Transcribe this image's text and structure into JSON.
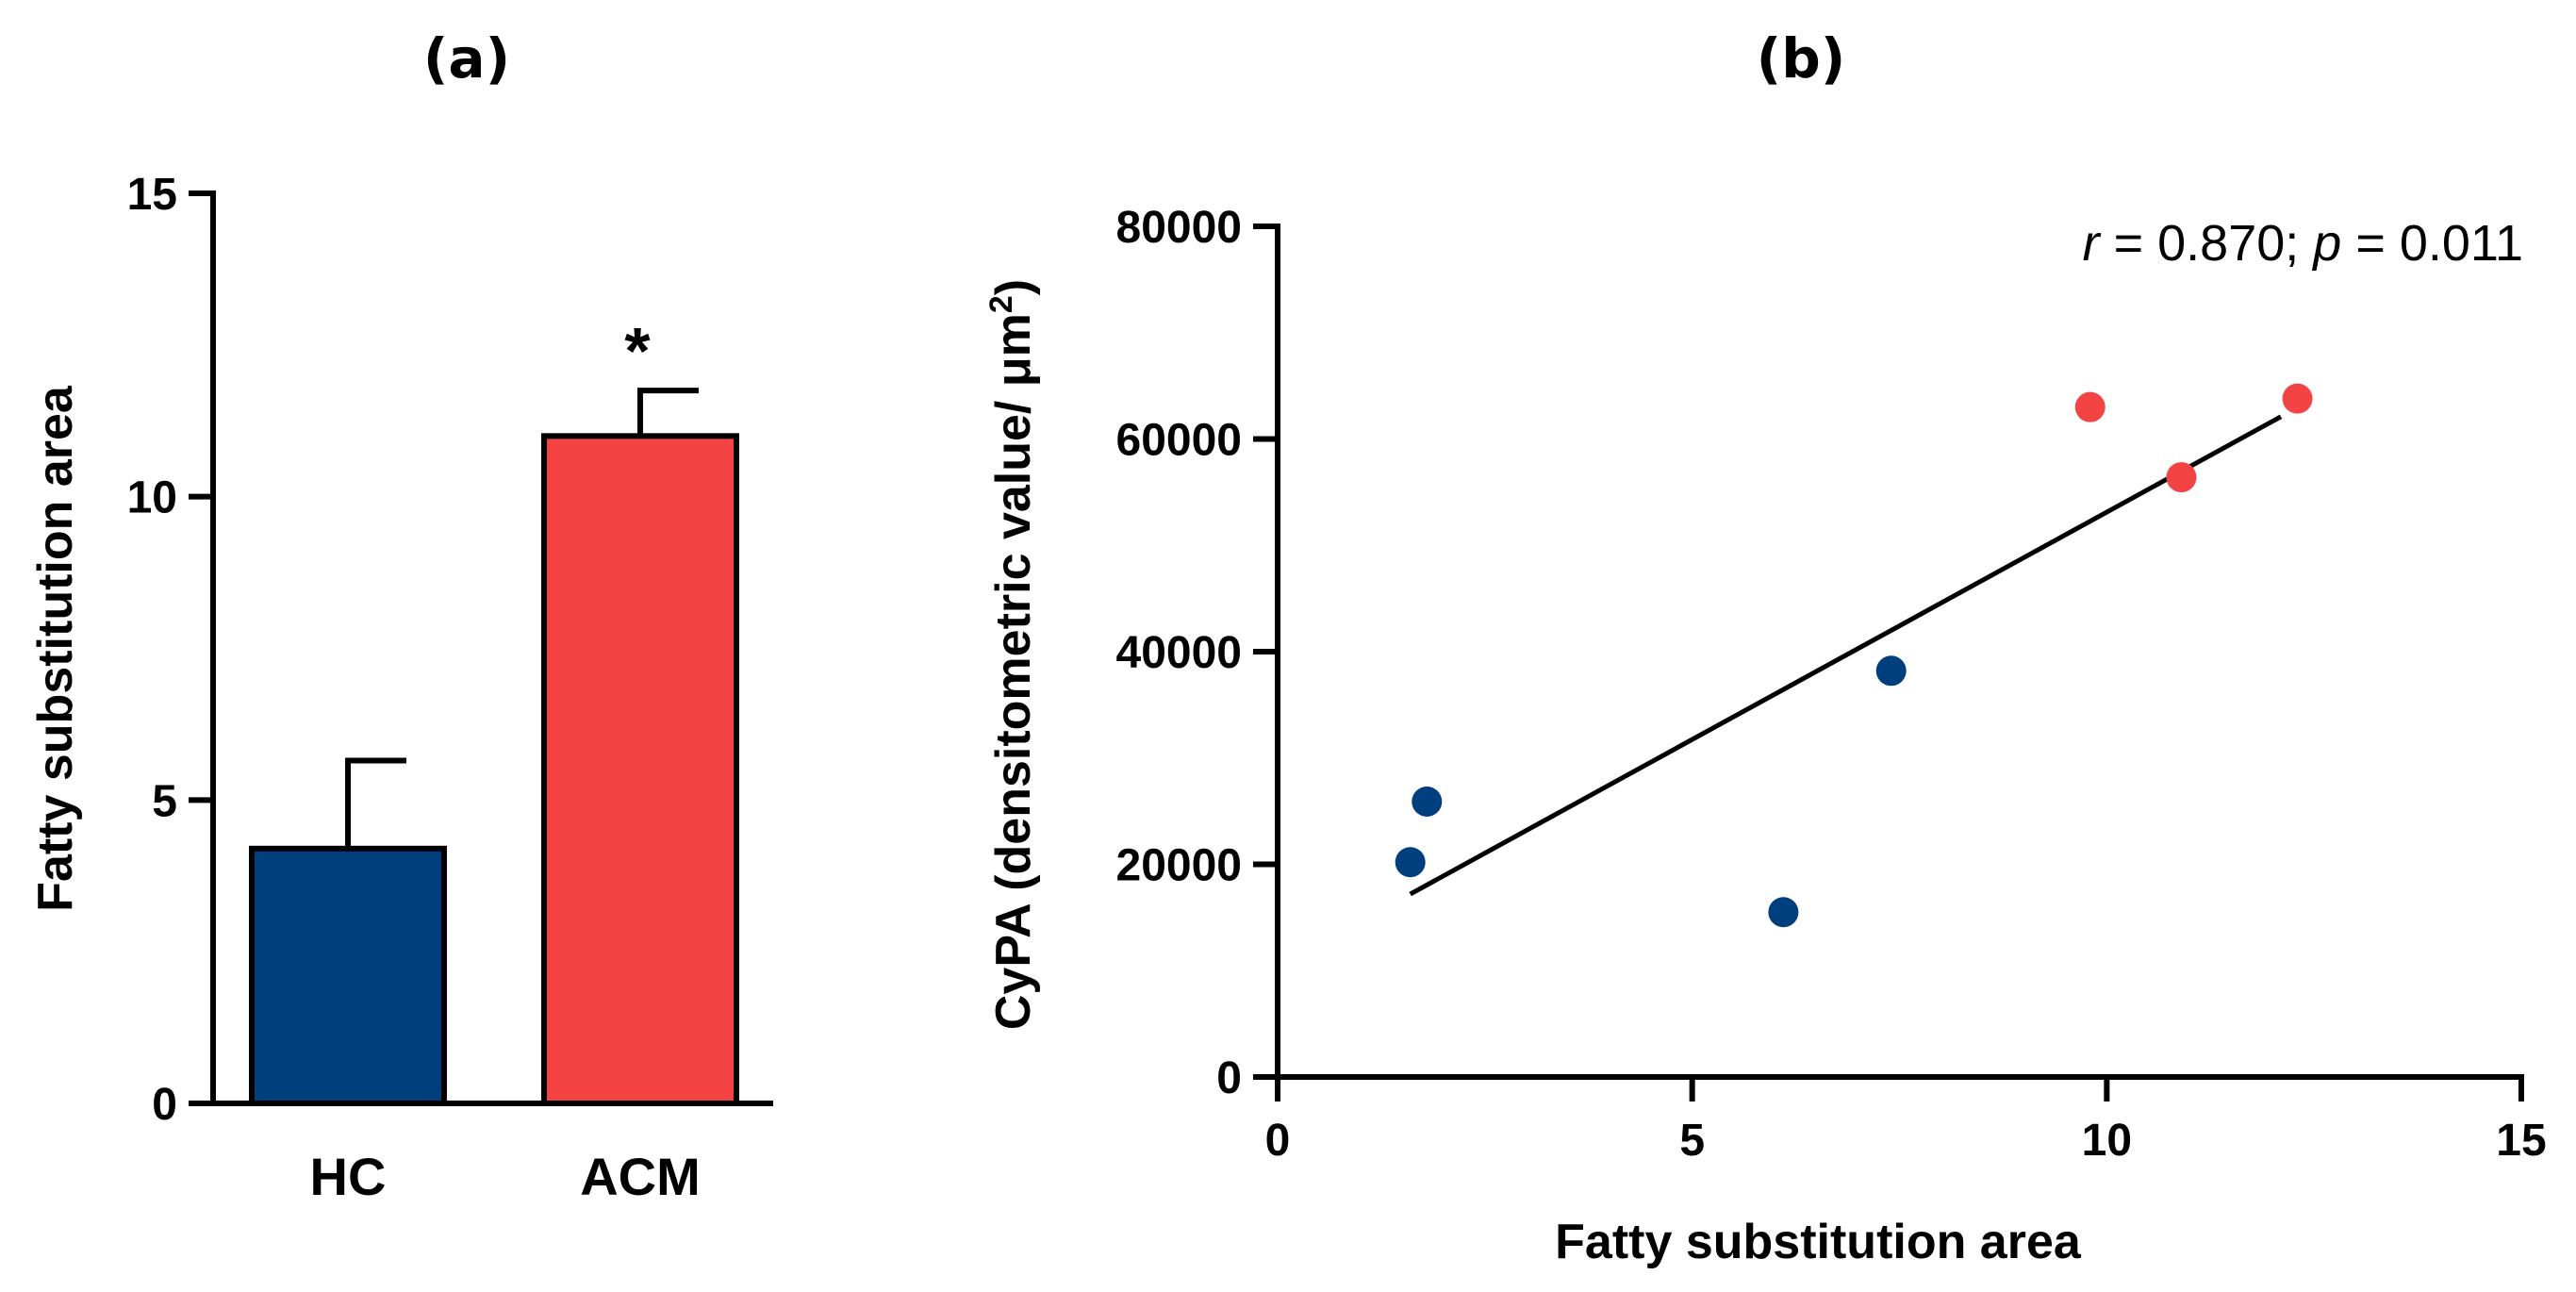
{
  "panel_a": {
    "label": "(a)"
  },
  "panel_b": {
    "label": "(b)"
  },
  "chart_data": [
    {
      "type": "bar",
      "title": "(a)",
      "categories": [
        "HC",
        "ACM"
      ],
      "values": [
        4.2,
        11.0
      ],
      "errors": [
        1.45,
        0.75
      ],
      "ylabel": "Fatty substitution area",
      "xlabel": "",
      "ylim": [
        0,
        15
      ],
      "yticks": [
        0,
        5,
        10,
        15
      ],
      "colors": [
        "#003f7d",
        "#f44343"
      ],
      "significance": {
        "category": "ACM",
        "marker": "*"
      }
    },
    {
      "type": "scatter",
      "title": "(b)",
      "xlabel": "Fatty substitution area",
      "ylabel": "CyPA (densitometric value/ μm²)",
      "ylabel_base": "CyPA (densitometric value/ μm",
      "ylabel_sup": "2",
      "ylabel_close": ")",
      "xlim": [
        0,
        15
      ],
      "ylim": [
        0,
        80000
      ],
      "xticks": [
        0,
        5,
        10,
        15
      ],
      "yticks": [
        0,
        20000,
        40000,
        60000,
        80000
      ],
      "series": [
        {
          "name": "HC",
          "color": "#003f7d",
          "points": [
            [
              1.6,
              20200
            ],
            [
              1.8,
              25900
            ],
            [
              6.1,
              15500
            ],
            [
              7.4,
              38200
            ]
          ]
        },
        {
          "name": "ACM",
          "color": "#f44343",
          "points": [
            [
              9.8,
              63000
            ],
            [
              10.9,
              56400
            ],
            [
              12.3,
              63800
            ]
          ]
        }
      ],
      "fit_line": {
        "x1": 1.6,
        "y1": 17200,
        "x2": 12.1,
        "y2": 62100
      },
      "annotation": {
        "r_label": "r",
        "r_value": " = 0.870; ",
        "p_label": "p",
        "p_value": " = 0.011"
      }
    }
  ]
}
